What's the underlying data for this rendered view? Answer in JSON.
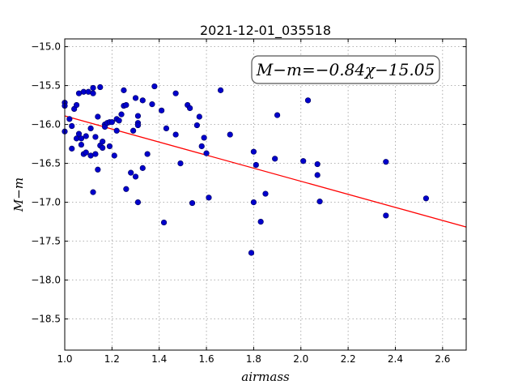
{
  "chart_data": {
    "type": "scatter",
    "title": "2021-12-01_035518",
    "xlabel": "airmass",
    "ylabel": "M−m",
    "xlim": [
      1.0,
      2.7
    ],
    "ylim": [
      -18.9,
      -14.9
    ],
    "y_inverted": true,
    "grid": true,
    "xticks": [
      "1.0",
      "1.2",
      "1.4",
      "1.6",
      "1.8",
      "2.0",
      "2.2",
      "2.4",
      "2.6"
    ],
    "yticks": [
      "−15.0",
      "−15.5",
      "−16.0",
      "−16.5",
      "−17.0",
      "−17.5",
      "−18.0",
      "−18.5"
    ],
    "annotation": "M−m=−0.84χ−15.05",
    "fit": {
      "slope": -0.84,
      "intercept": -15.05,
      "color": "#ff0000"
    },
    "marker_color": "#0000cc",
    "points": [
      [
        1.0,
        -15.72
      ],
      [
        1.0,
        -15.76
      ],
      [
        1.0,
        -16.09
      ],
      [
        1.02,
        -15.93
      ],
      [
        1.03,
        -16.02
      ],
      [
        1.03,
        -16.31
      ],
      [
        1.04,
        -15.8
      ],
      [
        1.05,
        -16.18
      ],
      [
        1.05,
        -15.75
      ],
      [
        1.06,
        -15.6
      ],
      [
        1.06,
        -16.12
      ],
      [
        1.07,
        -16.26
      ],
      [
        1.07,
        -16.18
      ],
      [
        1.08,
        -15.58
      ],
      [
        1.08,
        -16.38
      ],
      [
        1.09,
        -16.15
      ],
      [
        1.09,
        -16.36
      ],
      [
        1.1,
        -15.58
      ],
      [
        1.11,
        -16.4
      ],
      [
        1.11,
        -16.05
      ],
      [
        1.12,
        -16.87
      ],
      [
        1.12,
        -15.53
      ],
      [
        1.12,
        -15.6
      ],
      [
        1.13,
        -16.38
      ],
      [
        1.13,
        -16.16
      ],
      [
        1.14,
        -15.9
      ],
      [
        1.14,
        -16.58
      ],
      [
        1.15,
        -16.27
      ],
      [
        1.15,
        -15.52
      ],
      [
        1.16,
        -16.22
      ],
      [
        1.16,
        -16.3
      ],
      [
        1.17,
        -16.0
      ],
      [
        1.17,
        -16.03
      ],
      [
        1.18,
        -15.98
      ],
      [
        1.19,
        -16.28
      ],
      [
        1.19,
        -15.97
      ],
      [
        1.2,
        -15.97
      ],
      [
        1.21,
        -16.4
      ],
      [
        1.22,
        -16.08
      ],
      [
        1.22,
        -15.93
      ],
      [
        1.23,
        -15.95
      ],
      [
        1.24,
        -15.87
      ],
      [
        1.25,
        -15.76
      ],
      [
        1.25,
        -15.56
      ],
      [
        1.26,
        -16.83
      ],
      [
        1.26,
        -15.75
      ],
      [
        1.28,
        -16.62
      ],
      [
        1.29,
        -16.08
      ],
      [
        1.3,
        -16.67
      ],
      [
        1.3,
        -15.66
      ],
      [
        1.31,
        -15.98
      ],
      [
        1.31,
        -15.89
      ],
      [
        1.31,
        -16.01
      ],
      [
        1.31,
        -17.0
      ],
      [
        1.33,
        -15.69
      ],
      [
        1.33,
        -16.56
      ],
      [
        1.35,
        -16.38
      ],
      [
        1.37,
        -15.74
      ],
      [
        1.38,
        -15.51
      ],
      [
        1.41,
        -15.82
      ],
      [
        1.42,
        -17.26
      ],
      [
        1.43,
        -16.05
      ],
      [
        1.47,
        -15.6
      ],
      [
        1.47,
        -16.13
      ],
      [
        1.49,
        -16.5
      ],
      [
        1.52,
        -15.75
      ],
      [
        1.53,
        -15.79
      ],
      [
        1.54,
        -17.01
      ],
      [
        1.56,
        -16.01
      ],
      [
        1.57,
        -15.9
      ],
      [
        1.58,
        -16.28
      ],
      [
        1.59,
        -16.17
      ],
      [
        1.6,
        -16.37
      ],
      [
        1.61,
        -16.94
      ],
      [
        1.66,
        -15.56
      ],
      [
        1.7,
        -16.13
      ],
      [
        1.79,
        -17.65
      ],
      [
        1.8,
        -17.0
      ],
      [
        1.8,
        -16.35
      ],
      [
        1.81,
        -16.52
      ],
      [
        1.83,
        -17.25
      ],
      [
        1.85,
        -16.89
      ],
      [
        1.89,
        -16.44
      ],
      [
        1.9,
        -15.88
      ],
      [
        2.01,
        -16.47
      ],
      [
        2.03,
        -15.69
      ],
      [
        2.07,
        -16.51
      ],
      [
        2.07,
        -16.65
      ],
      [
        2.08,
        -16.99
      ],
      [
        2.36,
        -16.48
      ],
      [
        2.36,
        -17.17
      ],
      [
        2.53,
        -16.95
      ]
    ]
  }
}
